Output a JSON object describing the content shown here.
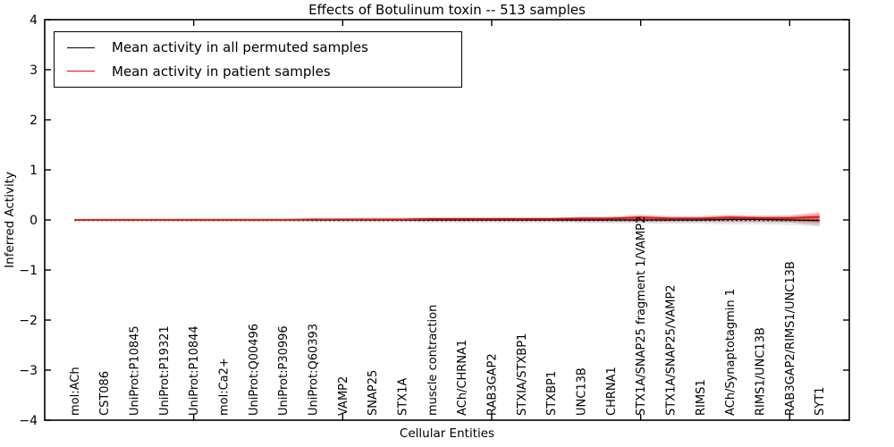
{
  "figure": {
    "title": "Effects of Botulinum toxin -- 513 samples",
    "xlabel": "Cellular Entities",
    "ylabel": "Inferred Activity"
  },
  "legend": {
    "position": "upper left",
    "entries": [
      {
        "label": "Mean activity in all permuted samples",
        "color": "#000000"
      },
      {
        "label": "Mean activity in patient samples",
        "color": "#ff0000"
      }
    ]
  },
  "chart_data": {
    "type": "line",
    "title": "Effects of Botulinum toxin -- 513 samples",
    "xlabel": "Cellular Entities",
    "ylabel": "Inferred Activity",
    "ylim": [
      -4,
      4
    ],
    "yticks": [
      4,
      3,
      2,
      1,
      0,
      -1,
      -2,
      -3,
      -4
    ],
    "ytick_labels": [
      "4",
      "3",
      "2",
      "1",
      "0",
      "−1",
      "−2",
      "−3",
      "−4"
    ],
    "xlim": [
      0,
      27
    ],
    "x_major_ticks": [
      5,
      10,
      15,
      20,
      25
    ],
    "grid": false,
    "legend_position": "upper left",
    "categories": [
      "mol:ACh",
      "CST086",
      "UniProt:P10845",
      "UniProt:P19321",
      "UniProt:P10844",
      "mol:Ca2+",
      "UniProt:Q00496",
      "UniProt:P30996",
      "UniProt:Q60393",
      "VAMP2",
      "SNAP25",
      "STX1A",
      "muscle contraction",
      "ACh/CHRNA1",
      "RAB3GAP2",
      "STXIA/STXBP1",
      "STXBP1",
      "UNC13B",
      "CHRNA1",
      "STX1A/SNAP25 fragment 1/VAMP2",
      "STX1A/SNAP25/VAMP2",
      "RIMS1",
      "ACh/Synaptotagmin 1",
      "RIMS1/UNC13B",
      "RAB3GAP2/RIMS1/UNC13B",
      "SYT1"
    ],
    "series": [
      {
        "name": "Mean activity in all permuted samples",
        "color": "#000000",
        "line_width": 1.2,
        "values": [
          0,
          0,
          0,
          0,
          0,
          0,
          0,
          0,
          0,
          0,
          0,
          0,
          0,
          0,
          0,
          0,
          0,
          0,
          0,
          0,
          0,
          0,
          0.01,
          0.01,
          0,
          -0.01
        ],
        "band_upper": [
          0.02,
          0.03,
          0.03,
          0.03,
          0.04,
          0.04,
          0.04,
          0.04,
          0.05,
          0.05,
          0.05,
          0.05,
          0.06,
          0.06,
          0.06,
          0.06,
          0.06,
          0.07,
          0.07,
          0.08,
          0.08,
          0.08,
          0.09,
          0.09,
          0.1,
          0.14
        ],
        "band_lower": [
          -0.02,
          -0.03,
          -0.03,
          -0.03,
          -0.04,
          -0.04,
          -0.04,
          -0.04,
          -0.05,
          -0.05,
          -0.05,
          -0.05,
          -0.06,
          -0.06,
          -0.06,
          -0.06,
          -0.06,
          -0.07,
          -0.07,
          -0.08,
          -0.08,
          -0.08,
          -0.09,
          -0.09,
          -0.1,
          -0.13
        ],
        "band_color": "#000000",
        "band_opacity": 0.09
      },
      {
        "name": "Mean activity in patient samples",
        "color": "#e81414",
        "line_width": 1.8,
        "values": [
          0,
          0,
          0,
          0,
          0,
          0,
          0,
          0,
          0.01,
          0.01,
          0.01,
          0.01,
          0.02,
          0.02,
          0.02,
          0.02,
          0.02,
          0.03,
          0.03,
          0.05,
          0.03,
          0.03,
          0.05,
          0.04,
          0.04,
          0.06
        ],
        "band_upper": [
          0.01,
          0.01,
          0.01,
          0.01,
          0.01,
          0.02,
          0.02,
          0.02,
          0.02,
          0.03,
          0.03,
          0.03,
          0.05,
          0.05,
          0.05,
          0.05,
          0.05,
          0.06,
          0.06,
          0.12,
          0.07,
          0.07,
          0.11,
          0.08,
          0.09,
          0.17
        ],
        "band_lower": [
          -0.01,
          -0.01,
          -0.01,
          -0.01,
          -0.01,
          -0.01,
          -0.01,
          -0.01,
          -0.01,
          -0.02,
          -0.02,
          -0.02,
          -0.02,
          -0.02,
          -0.02,
          -0.02,
          -0.02,
          -0.03,
          -0.03,
          -0.04,
          -0.03,
          -0.03,
          -0.04,
          -0.04,
          -0.05,
          -0.12
        ],
        "band_color": "#ff2020",
        "band_opacity": 0.17
      }
    ],
    "zero_line": {
      "value": 0,
      "style": "dotted",
      "color": "#000000"
    }
  }
}
